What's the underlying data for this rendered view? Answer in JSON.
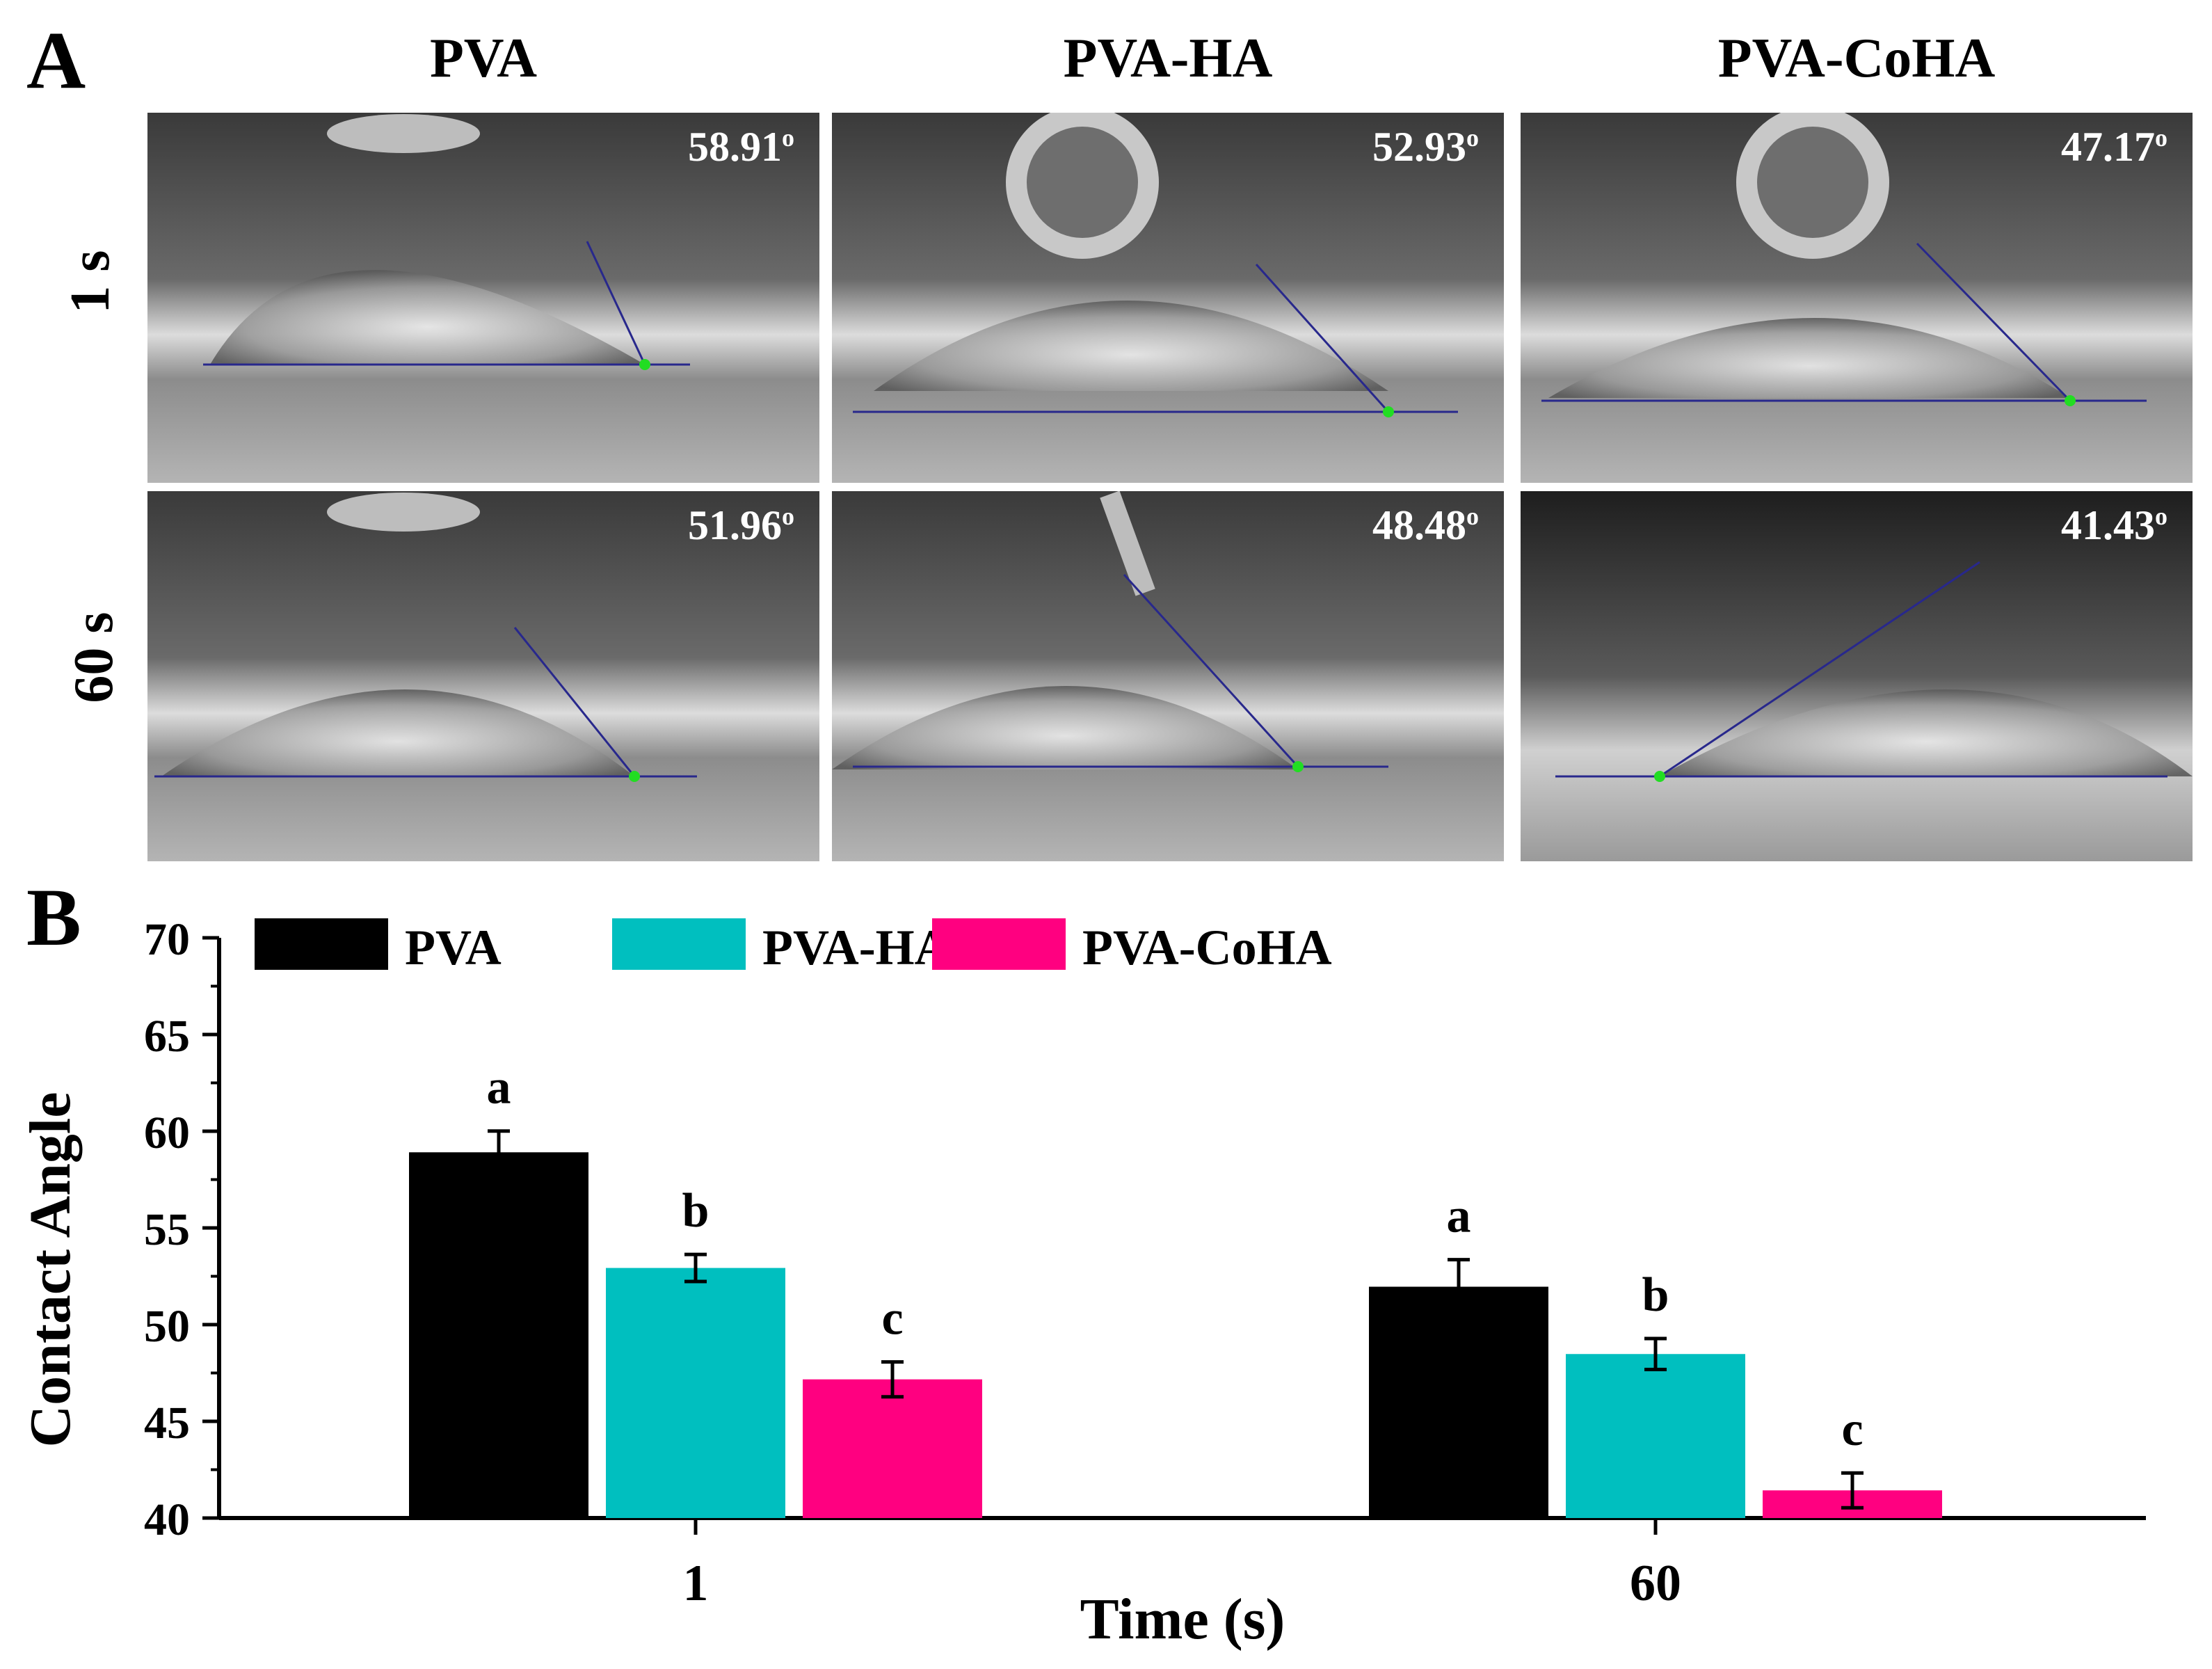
{
  "panel_a": {
    "letter": "A",
    "columns": [
      "PVA",
      "PVA-HA",
      "PVA-CoHA"
    ],
    "rows": [
      "1 s",
      "60 s"
    ],
    "angles": [
      [
        "58.91",
        "52.93",
        "47.17"
      ],
      [
        "51.96",
        "48.48",
        "41.43"
      ]
    ],
    "degree_symbol": "o"
  },
  "panel_b": {
    "letter": "B"
  },
  "chart_data": {
    "type": "bar",
    "categories": [
      "1",
      "60"
    ],
    "series": [
      {
        "name": "PVA",
        "color": "#000000",
        "values": [
          58.91,
          51.96
        ],
        "errors": [
          1.1,
          1.4
        ],
        "labels": [
          "a",
          "a"
        ]
      },
      {
        "name": "PVA-HA",
        "color": "#00BFBF",
        "values": [
          52.93,
          48.48
        ],
        "errors": [
          0.7,
          0.8
        ],
        "labels": [
          "b",
          "b"
        ]
      },
      {
        "name": "PVA-CoHA",
        "color": "#FF0080",
        "values": [
          47.17,
          41.43
        ],
        "errors": [
          0.9,
          0.9
        ],
        "labels": [
          "c",
          "c"
        ]
      }
    ],
    "xlabel": "Time (s)",
    "ylabel": "Contact Angle",
    "ylim": [
      40,
      70
    ],
    "yticks": [
      40,
      45,
      50,
      55,
      60,
      65,
      70
    ],
    "legend_position": "top-left"
  }
}
